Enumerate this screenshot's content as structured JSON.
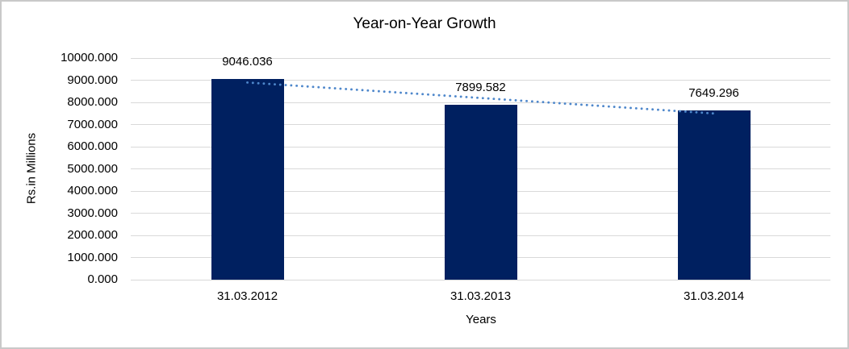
{
  "window": {
    "background": "#ffffff",
    "border_color": "#c9c9c9"
  },
  "chart_data": {
    "type": "bar",
    "title": "Year-on-Year Growth",
    "categories": [
      "31.03.2012",
      "31.03.2013",
      "31.03.2014"
    ],
    "values": [
      9046.036,
      7899.582,
      7649.296
    ],
    "value_labels": [
      "9046.036",
      "7899.582",
      "7649.296"
    ],
    "xlabel": "Years",
    "ylabel": "Rs.in Millions",
    "ylim": [
      0,
      10000
    ],
    "ytick_step": 1000,
    "ytick_labels": [
      "0.000",
      "1000.000",
      "2000.000",
      "3000.000",
      "4000.000",
      "5000.000",
      "6000.000",
      "7000.000",
      "8000.000",
      "9000.000",
      "10000.000"
    ],
    "grid": "horizontal",
    "legend": "none",
    "trendline": {
      "style": "dotted",
      "fit": "linear",
      "color": "#4e87cb"
    },
    "colors": {
      "bar": "#002060",
      "gridline": "#d9d9d9",
      "text": "#000000",
      "trendline": "#4e87cb"
    }
  }
}
